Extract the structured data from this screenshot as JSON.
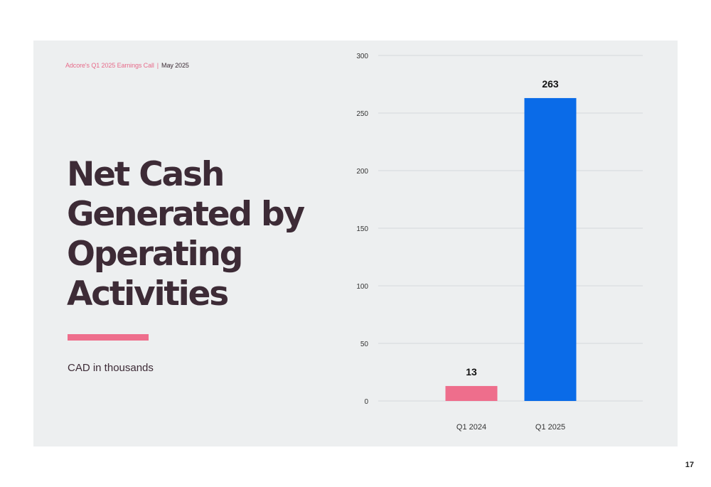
{
  "header": {
    "event": "Adcore's Q1 2025 Earnings Call",
    "separator": "|",
    "date": "May 2025"
  },
  "title": "Net Cash Generated by Operating Activities",
  "unit_label": "CAD in thousands",
  "page_number": "17",
  "colors": {
    "q1_2024_bar": "#ee6e8c",
    "q1_2025_bar": "#0a6be8",
    "title_text": "#3d2b36",
    "panel_background": "#edeff0"
  },
  "chart_data": {
    "type": "bar",
    "categories": [
      "Q1 2024",
      "Q1 2025"
    ],
    "values": [
      13,
      263
    ],
    "data_labels": [
      "13",
      "263"
    ],
    "bar_colors": [
      "#ee6e8c",
      "#0a6be8"
    ],
    "ylim": [
      0,
      300
    ],
    "yticks": [
      0,
      50,
      100,
      150,
      200,
      250,
      300
    ],
    "grid": true,
    "title": "",
    "xlabel": "",
    "ylabel": ""
  }
}
